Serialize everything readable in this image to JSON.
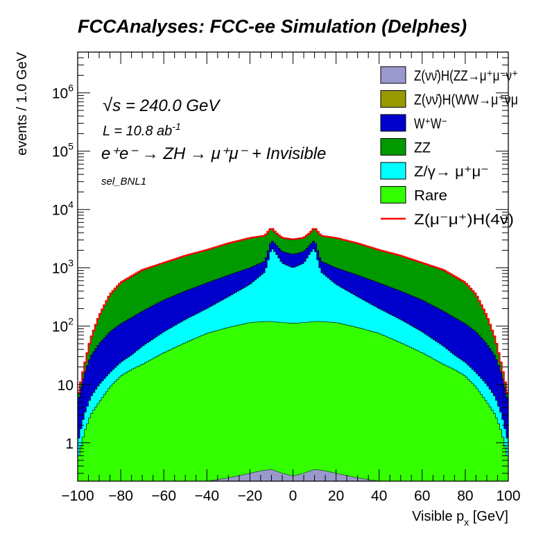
{
  "chart_data": {
    "type": "stacked-histogram",
    "title": "FCCAnalyses: FCC-ee Simulation (Delphes)",
    "xlabel_main": "Visible p",
    "xlabel_sub": "x",
    "xlabel_unit": " [GeV]",
    "ylabel": "events / 1.0 GeV",
    "xlim": [
      -100,
      100
    ],
    "ylim": [
      0.22,
      5000000
    ],
    "y_scale": "log",
    "x_ticks": [
      -100,
      -80,
      -60,
      -40,
      -20,
      0,
      20,
      40,
      60,
      80,
      100
    ],
    "y_ticks": [
      {
        "value": 1,
        "base": "1",
        "exp": ""
      },
      {
        "value": 10,
        "base": "10",
        "exp": ""
      },
      {
        "value": 100,
        "base": "10",
        "exp": "2"
      },
      {
        "value": 1000,
        "base": "10",
        "exp": "3"
      },
      {
        "value": 10000,
        "base": "10",
        "exp": "4"
      },
      {
        "value": 100000,
        "base": "10",
        "exp": "5"
      },
      {
        "value": 1000000,
        "base": "10",
        "exp": "6"
      }
    ],
    "annotations": {
      "sqrt_s": "s",
      "sqrt_s_value": " = 240.0 GeV",
      "lumi": "L = 10.8 ab",
      "lumi_exp": "-1",
      "process": "e⁺e⁻ → ZH → μ⁺μ⁻ + Invisible",
      "selection": "sel_BNL1"
    },
    "legend_position": "top-right",
    "legend": [
      {
        "label": "Z(νν̄)H(ZZ→μ⁺μ⁻ν⁺",
        "color": "#9999cc",
        "style": "box"
      },
      {
        "label": "Z(νν̄)H(WW→μ⁺νμ",
        "color": "#999900",
        "style": "box"
      },
      {
        "label": "W⁺W⁻",
        "color": "#0000cc",
        "style": "box"
      },
      {
        "label": "ZZ",
        "color": "#009900",
        "style": "box"
      },
      {
        "label": "Z/γ→ μ⁺μ⁻",
        "color": "#00ffff",
        "style": "box"
      },
      {
        "label": "Rare",
        "color": "#33ff00",
        "style": "box"
      },
      {
        "label": "Z(μ⁻μ⁺)H(4ν)",
        "color": "#ff0000",
        "style": "line"
      }
    ],
    "series_cumulative_envelope": {
      "x": [
        -100,
        -97,
        -94,
        -90,
        -85,
        -80,
        -75,
        -70,
        -60,
        -50,
        -40,
        -30,
        -20,
        -13,
        -10,
        -8,
        -5,
        0,
        5,
        8,
        10,
        13,
        20,
        30,
        40,
        50,
        60,
        70,
        75,
        80,
        85,
        90,
        94,
        97,
        100
      ],
      "Rare": [
        0.5,
        1.5,
        3,
        5,
        9,
        14,
        18,
        22,
        35,
        52,
        75,
        95,
        115,
        120,
        120,
        118,
        115,
        112,
        115,
        118,
        120,
        120,
        115,
        95,
        75,
        52,
        35,
        22,
        18,
        14,
        9,
        5,
        3,
        1.5,
        0.5
      ],
      "Z_gamma_mumu": [
        1,
        3,
        6,
        10,
        16,
        24,
        32,
        45,
        80,
        130,
        200,
        320,
        520,
        850,
        2200,
        1800,
        1200,
        1000,
        1200,
        1800,
        2200,
        850,
        520,
        320,
        200,
        130,
        80,
        45,
        32,
        24,
        16,
        10,
        6,
        3,
        1
      ],
      "WW": [
        5,
        15,
        30,
        50,
        80,
        110,
        140,
        180,
        280,
        400,
        550,
        750,
        1000,
        1300,
        3000,
        2500,
        1900,
        1700,
        1900,
        2500,
        3000,
        1300,
        1000,
        750,
        550,
        400,
        280,
        180,
        140,
        110,
        80,
        50,
        30,
        15,
        5
      ],
      "ZZ": [
        6,
        20,
        60,
        150,
        350,
        550,
        700,
        900,
        1200,
        1600,
        2000,
        2600,
        3200,
        3500,
        4800,
        3900,
        3200,
        3000,
        3200,
        3900,
        4800,
        3500,
        3200,
        2600,
        2000,
        1600,
        1200,
        900,
        700,
        550,
        350,
        150,
        60,
        20,
        6
      ],
      "ZH_signal_top": [
        6,
        20,
        60,
        150,
        350,
        560,
        720,
        920,
        1220,
        1620,
        2030,
        2640,
        3260,
        3560,
        4900,
        4000,
        3280,
        3080,
        3280,
        4000,
        4900,
        3560,
        3260,
        2640,
        2030,
        1620,
        1220,
        920,
        720,
        560,
        350,
        150,
        60,
        20,
        6
      ]
    },
    "series_ZZ_invisible_higgs": {
      "x": [
        -40,
        -30,
        -20,
        -15,
        -10,
        -5,
        0,
        5,
        10,
        15,
        20,
        30,
        40
      ],
      "values": [
        0.22,
        0.25,
        0.3,
        0.33,
        0.35,
        0.3,
        0.27,
        0.3,
        0.35,
        0.33,
        0.3,
        0.25,
        0.22
      ]
    }
  }
}
